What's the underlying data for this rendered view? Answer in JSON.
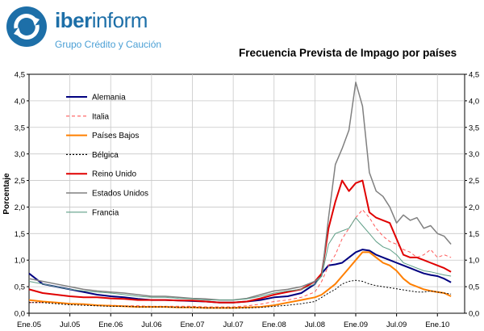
{
  "brand": {
    "name_bold": "iber",
    "name_rest": "inform",
    "tagline": "Grupo Crédito y Caución"
  },
  "colors": {
    "brand": "#1d6fa8",
    "brand_light": "#4a9fd5"
  },
  "chart_data": {
    "type": "line",
    "title": "Frecuencia Prevista de Impago por países",
    "ylabel": "Porcentaje",
    "xlabel": "",
    "ylim": [
      0,
      4.5
    ],
    "yticks": [
      "0,0",
      "0,5",
      "1,0",
      "1,5",
      "2,0",
      "2,5",
      "3,0",
      "3,5",
      "4,0",
      "4,5"
    ],
    "xticks": [
      "Ene.05",
      "Jul.05",
      "Ene.06",
      "Jul.06",
      "Ene.07",
      "Jul.07",
      "Ene.08",
      "Jul.08",
      "Ene.09",
      "Jul.09",
      "Ene.10"
    ],
    "grid": true,
    "legend_position": "top-left",
    "x": [
      "2005-01",
      "2005-03",
      "2005-05",
      "2005-07",
      "2005-09",
      "2005-11",
      "2006-01",
      "2006-03",
      "2006-05",
      "2006-07",
      "2006-09",
      "2006-11",
      "2007-01",
      "2007-03",
      "2007-05",
      "2007-07",
      "2007-09",
      "2007-11",
      "2008-01",
      "2008-03",
      "2008-05",
      "2008-07",
      "2008-08",
      "2008-09",
      "2008-10",
      "2008-11",
      "2008-12",
      "2009-01",
      "2009-02",
      "2009-03",
      "2009-04",
      "2009-05",
      "2009-06",
      "2009-07",
      "2009-08",
      "2009-09",
      "2009-10",
      "2009-11",
      "2009-12",
      "2010-01",
      "2010-02",
      "2010-03"
    ],
    "series": [
      {
        "name": "Alemania",
        "color": "#000080",
        "dash": "solid",
        "width": 2,
        "values": [
          0.75,
          0.55,
          0.5,
          0.45,
          0.4,
          0.35,
          0.32,
          0.3,
          0.27,
          0.25,
          0.25,
          0.24,
          0.23,
          0.22,
          0.2,
          0.2,
          0.22,
          0.25,
          0.3,
          0.32,
          0.38,
          0.55,
          0.75,
          0.9,
          0.92,
          0.95,
          1.05,
          1.15,
          1.2,
          1.18,
          1.1,
          1.05,
          1.0,
          0.95,
          0.9,
          0.85,
          0.8,
          0.75,
          0.72,
          0.7,
          0.65,
          0.58
        ]
      },
      {
        "name": "Italia",
        "color": "#ff5a5a",
        "dash": "4,3",
        "width": 1,
        "values": [
          0.2,
          0.2,
          0.2,
          0.18,
          0.17,
          0.15,
          0.15,
          0.14,
          0.14,
          0.13,
          0.13,
          0.13,
          0.13,
          0.12,
          0.12,
          0.12,
          0.14,
          0.17,
          0.22,
          0.25,
          0.3,
          0.4,
          0.6,
          0.9,
          1.1,
          1.4,
          1.6,
          1.8,
          1.95,
          1.8,
          1.6,
          1.45,
          1.35,
          1.3,
          1.2,
          1.15,
          1.05,
          1.1,
          1.2,
          1.05,
          1.1,
          1.05
        ]
      },
      {
        "name": "Países Bajos",
        "color": "#ff7f00",
        "dash": "solid",
        "width": 2,
        "values": [
          0.25,
          0.22,
          0.2,
          0.18,
          0.17,
          0.15,
          0.14,
          0.13,
          0.12,
          0.12,
          0.12,
          0.11,
          0.11,
          0.1,
          0.1,
          0.1,
          0.11,
          0.12,
          0.15,
          0.2,
          0.25,
          0.3,
          0.35,
          0.45,
          0.55,
          0.7,
          0.85,
          1.0,
          1.15,
          1.15,
          1.05,
          0.95,
          0.9,
          0.8,
          0.65,
          0.55,
          0.5,
          0.45,
          0.42,
          0.4,
          0.38,
          0.32
        ]
      },
      {
        "name": "Bélgica",
        "color": "#000000",
        "dash": "2,2",
        "width": 1,
        "values": [
          0.2,
          0.2,
          0.18,
          0.16,
          0.15,
          0.14,
          0.13,
          0.13,
          0.12,
          0.12,
          0.12,
          0.11,
          0.11,
          0.1,
          0.1,
          0.1,
          0.1,
          0.11,
          0.13,
          0.15,
          0.18,
          0.22,
          0.3,
          0.38,
          0.45,
          0.55,
          0.6,
          0.62,
          0.6,
          0.55,
          0.52,
          0.5,
          0.48,
          0.46,
          0.44,
          0.42,
          0.4,
          0.4,
          0.42,
          0.4,
          0.38,
          0.36
        ]
      },
      {
        "name": "Reino Unido",
        "color": "#e00000",
        "dash": "solid",
        "width": 2,
        "values": [
          0.45,
          0.38,
          0.35,
          0.32,
          0.3,
          0.3,
          0.28,
          0.27,
          0.25,
          0.25,
          0.25,
          0.24,
          0.24,
          0.22,
          0.2,
          0.2,
          0.22,
          0.28,
          0.35,
          0.4,
          0.45,
          0.6,
          0.75,
          1.6,
          2.1,
          2.5,
          2.3,
          2.45,
          2.5,
          1.9,
          1.8,
          1.75,
          1.7,
          1.4,
          1.1,
          1.05,
          1.05,
          1.0,
          0.95,
          0.9,
          0.85,
          0.78
        ]
      },
      {
        "name": "Estados Unidos",
        "color": "#808080",
        "dash": "solid",
        "width": 1.5,
        "values": [
          0.65,
          0.6,
          0.55,
          0.5,
          0.45,
          0.42,
          0.4,
          0.38,
          0.35,
          0.32,
          0.32,
          0.3,
          0.28,
          0.27,
          0.25,
          0.25,
          0.28,
          0.35,
          0.42,
          0.45,
          0.5,
          0.6,
          0.7,
          1.8,
          2.8,
          3.1,
          3.45,
          4.35,
          3.9,
          2.65,
          2.3,
          2.2,
          2.0,
          1.7,
          1.85,
          1.75,
          1.8,
          1.6,
          1.65,
          1.5,
          1.45,
          1.3
        ]
      },
      {
        "name": "Francia",
        "color": "#5f9f87",
        "dash": "solid",
        "width": 1,
        "values": [
          0.6,
          0.55,
          0.5,
          0.45,
          0.42,
          0.4,
          0.38,
          0.35,
          0.32,
          0.3,
          0.3,
          0.28,
          0.27,
          0.25,
          0.25,
          0.25,
          0.27,
          0.32,
          0.38,
          0.42,
          0.45,
          0.55,
          0.7,
          1.3,
          1.5,
          1.55,
          1.6,
          1.8,
          1.65,
          1.5,
          1.35,
          1.25,
          1.2,
          1.1,
          0.95,
          0.9,
          0.85,
          0.8,
          0.78,
          0.75,
          0.72,
          0.7
        ]
      }
    ]
  }
}
